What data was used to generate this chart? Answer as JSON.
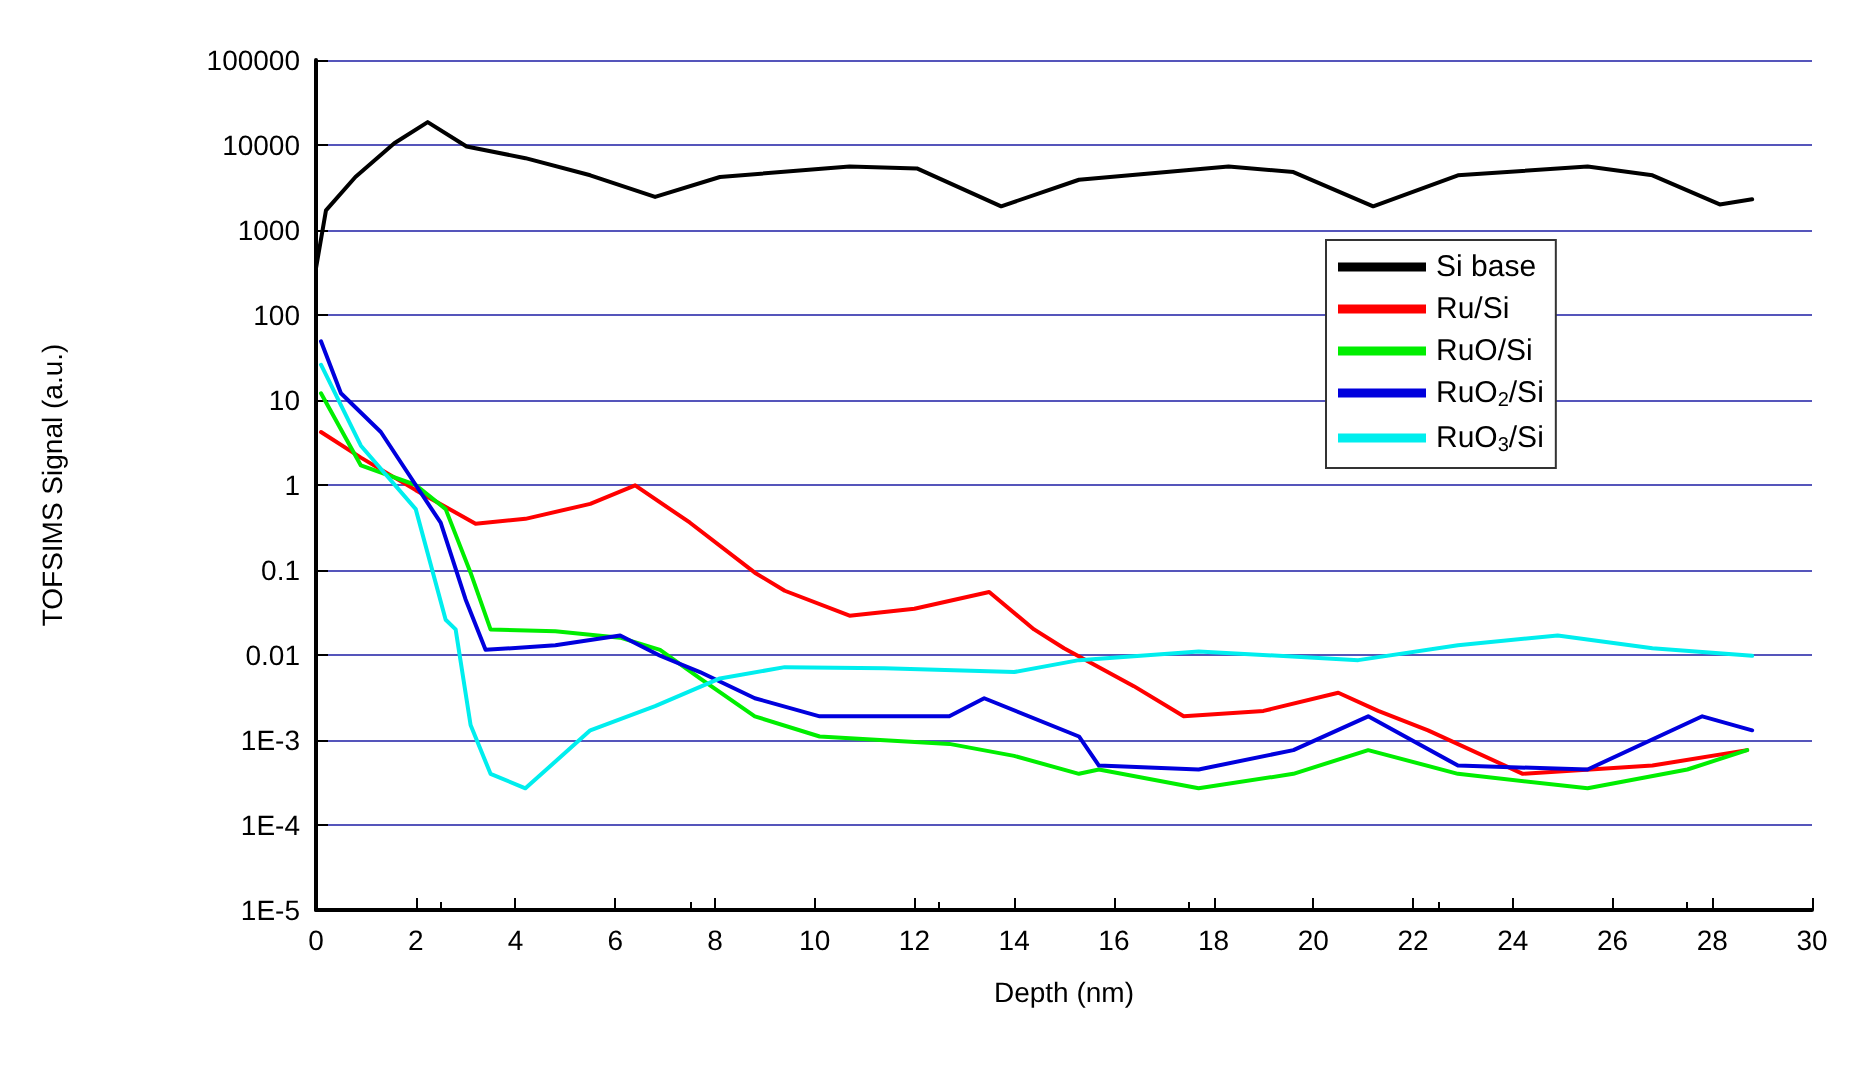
{
  "chart_data": {
    "type": "line",
    "xlabel": "Depth (nm)",
    "ylabel": "TOFSIMS Signal (a.u.)",
    "log": "y",
    "grid": "y",
    "legend": "right",
    "marker": "none",
    "line_style": "solid",
    "xlim": [
      0,
      30
    ],
    "xticks": [
      0,
      2,
      4,
      6,
      8,
      10,
      12,
      14,
      16,
      18,
      20,
      22,
      24,
      26,
      28,
      30
    ],
    "ylim": [
      1e-05,
      100000
    ],
    "yticks": [
      {
        "value": 1e-05,
        "label": "1E-5"
      },
      {
        "value": 0.0001,
        "label": "1E-4"
      },
      {
        "value": 0.001,
        "label": "1E-3"
      },
      0.01,
      0.1,
      1,
      10,
      100,
      1000,
      10000,
      100000
    ],
    "series": [
      {
        "name": "Si base",
        "color": "#000000",
        "x": [
          0,
          0.2,
          0.79,
          1.57,
          2.24,
          3.02,
          4.2,
          5.5,
          6.8,
          8.1,
          10.7,
          12.05,
          13.74,
          15.3,
          18.3,
          19.6,
          21.2,
          22.9,
          25.5,
          26.8,
          28.15,
          28.8
        ],
        "values": [
          355,
          1700,
          4200,
          10500,
          18600,
          9600,
          7000,
          4400,
          2450,
          4200,
          5600,
          5300,
          1900,
          3900,
          5600,
          4800,
          1900,
          4400,
          5600,
          4400,
          2000,
          2300
        ]
      },
      {
        "name": "Ru/Si",
        "color": "#ff0000",
        "x": [
          0.1,
          0.9,
          2,
          3.2,
          4.2,
          5.5,
          6.4,
          7.5,
          8.8,
          9.4,
          10.7,
          12,
          13.5,
          14.4,
          15,
          16.4,
          17.4,
          19,
          20.5,
          21.3,
          22.3,
          24.2,
          26.8,
          28.7
        ],
        "values": [
          4.2,
          2.1,
          0.87,
          0.35,
          0.4,
          0.6,
          0.99,
          0.36,
          0.093,
          0.057,
          0.029,
          0.035,
          0.055,
          0.02,
          0.012,
          0.0043,
          0.0019,
          0.0022,
          0.0036,
          0.0022,
          0.0013,
          0.0004,
          0.0005,
          0.00076
        ]
      },
      {
        "name": "RuO/Si",
        "color": "#00ee00",
        "x": [
          0.1,
          0.9,
          2,
          2.6,
          3.1,
          3.5,
          4.8,
          6.1,
          6.9,
          7.7,
          8.8,
          10.1,
          12.7,
          14,
          15.3,
          15.7,
          17.7,
          19.6,
          21.1,
          22.9,
          25.5,
          27.5,
          28.7
        ],
        "values": [
          12,
          1.7,
          1,
          0.52,
          0.093,
          0.02,
          0.019,
          0.016,
          0.0115,
          0.0053,
          0.0019,
          0.0011,
          0.0009,
          0.00065,
          0.0004,
          0.00045,
          0.00027,
          0.0004,
          0.00076,
          0.0004,
          0.00027,
          0.00045,
          0.00076
        ]
      },
      {
        "name": "RuO$_{2}$/Si",
        "color": "#0000dd",
        "x": [
          0.1,
          0.5,
          1.3,
          2,
          2.5,
          3.0,
          3.4,
          4.8,
          6.1,
          6.9,
          7.7,
          8.8,
          10.1,
          12.7,
          13.4,
          15.3,
          15.7,
          17.7,
          19.6,
          21.1,
          22.9,
          25.5,
          27.8,
          28.8
        ],
        "values": [
          49,
          12,
          4.2,
          1,
          0.36,
          0.045,
          0.0115,
          0.013,
          0.017,
          0.0098,
          0.0063,
          0.0031,
          0.0019,
          0.0019,
          0.0031,
          0.0011,
          0.0005,
          0.00045,
          0.00076,
          0.0019,
          0.0005,
          0.00045,
          0.0019,
          0.0013
        ]
      },
      {
        "name": "RuO$_{3}$/Si",
        "color": "#00eeee",
        "x": [
          0.1,
          0.9,
          2,
          2.6,
          2.8,
          3.1,
          3.5,
          4.2,
          5.5,
          6.8,
          8.1,
          9.4,
          11.4,
          14,
          15.3,
          17.7,
          20.9,
          22.9,
          24.9,
          26.8,
          28.8
        ],
        "values": [
          26,
          2.9,
          0.52,
          0.026,
          0.02,
          0.0015,
          0.0004,
          0.00027,
          0.0013,
          0.0025,
          0.0053,
          0.0072,
          0.007,
          0.0063,
          0.0087,
          0.011,
          0.0087,
          0.013,
          0.017,
          0.012,
          0.0098
        ]
      }
    ]
  }
}
